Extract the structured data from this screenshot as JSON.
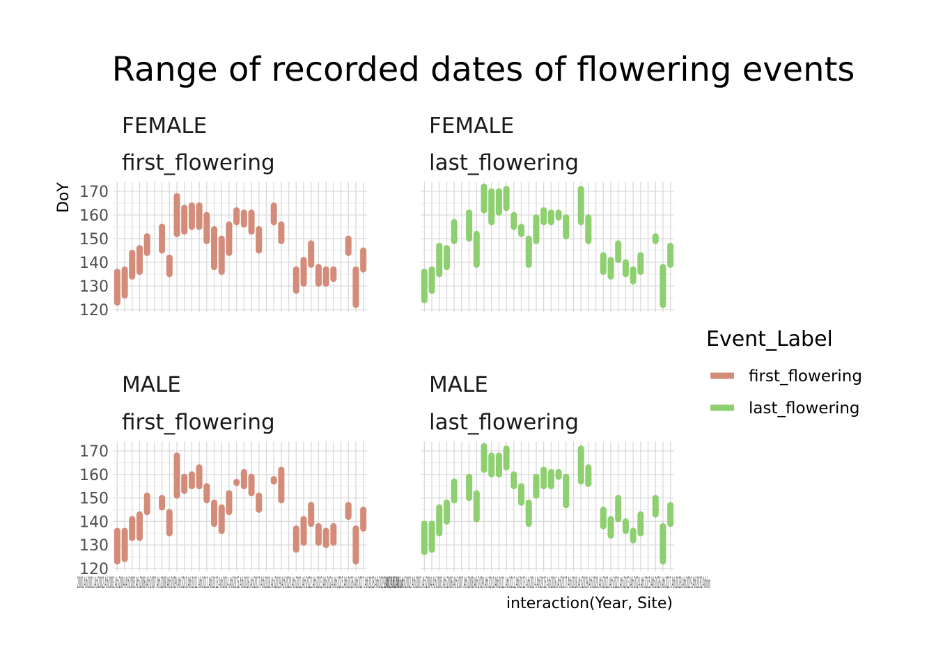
{
  "chart_data": {
    "type": "range",
    "title": "Range of recorded dates of flowering events",
    "xlabel": "interaction(Year, Site)",
    "ylabel": "DoY",
    "ylim": [
      120,
      174
    ],
    "y_ticks": [
      120,
      130,
      140,
      150,
      160,
      170
    ],
    "x_tick_label_text": "2000.Ath2001.Ath2002.Ath2003.Ath2004.Ath2005.Ath2006.Ath2007.Ath2008.Ath2009.Ath2010.Ath2011.Ath2012.Ath2013.Ath2014.Ath2015.Ath2016.Ath2017.Ath2018.Ath2019.Ath2020.Ath2021.Ath2022.Ath2023.Ath2024.Ath2025.Ath2026.Ath2027.Ath2028.Ath2029.Ath2030.Athlon",
    "grid": true,
    "legend": {
      "title": "Event_Label",
      "position": "right",
      "items": [
        {
          "label": "first_flowering",
          "color": "#d48c7a"
        },
        {
          "label": "last_flowering",
          "color": "#8ed070"
        }
      ]
    },
    "panels": [
      {
        "sex": "FEMALE",
        "event": "first_flowering",
        "color": "#d48c7a",
        "ranges": [
          [
            123,
            136
          ],
          [
            126,
            137
          ],
          [
            134,
            144
          ],
          [
            136,
            146
          ],
          [
            144,
            151
          ],
          null,
          [
            145,
            155
          ],
          [
            135,
            142
          ],
          [
            152,
            168
          ],
          [
            153,
            163
          ],
          [
            155,
            164
          ],
          [
            155,
            164
          ],
          [
            149,
            160
          ],
          [
            138,
            154
          ],
          [
            136,
            150
          ],
          [
            144,
            156
          ],
          [
            157,
            162
          ],
          [
            156,
            161
          ],
          [
            153,
            161
          ],
          [
            145,
            154
          ],
          null,
          [
            157,
            164
          ],
          [
            149,
            156
          ],
          null,
          [
            128,
            137
          ],
          [
            131,
            141
          ],
          [
            139,
            148
          ],
          [
            131,
            138
          ],
          [
            131,
            137
          ],
          [
            133,
            137
          ],
          null,
          [
            144,
            150
          ],
          [
            122,
            137
          ],
          [
            137,
            145
          ]
        ]
      },
      {
        "sex": "FEMALE",
        "event": "last_flowering",
        "color": "#8ed070",
        "ranges": [
          [
            124,
            136
          ],
          [
            128,
            137
          ],
          [
            135,
            147
          ],
          [
            138,
            146
          ],
          [
            149,
            157
          ],
          null,
          [
            150,
            161
          ],
          [
            139,
            152
          ],
          [
            162,
            172
          ],
          [
            157,
            170
          ],
          [
            161,
            170
          ],
          [
            163,
            171
          ],
          [
            155,
            160
          ],
          [
            152,
            155
          ],
          [
            139,
            150
          ],
          [
            149,
            159
          ],
          [
            157,
            162
          ],
          [
            157,
            161
          ],
          [
            159,
            161
          ],
          [
            151,
            159
          ],
          null,
          [
            157,
            171
          ],
          [
            149,
            159
          ],
          null,
          [
            136,
            143
          ],
          [
            134,
            141
          ],
          [
            141,
            148
          ],
          [
            135,
            140
          ],
          [
            132,
            137
          ],
          [
            136,
            143
          ],
          null,
          [
            149,
            151
          ],
          [
            122,
            138
          ],
          [
            139,
            147
          ]
        ]
      },
      {
        "sex": "MALE",
        "event": "first_flowering",
        "color": "#d48c7a",
        "ranges": [
          [
            123,
            136
          ],
          [
            124,
            136
          ],
          [
            133,
            141
          ],
          [
            133,
            143
          ],
          [
            144,
            151
          ],
          null,
          [
            146,
            150
          ],
          [
            135,
            144
          ],
          [
            151,
            168
          ],
          [
            153,
            159
          ],
          [
            155,
            160
          ],
          [
            155,
            163
          ],
          [
            149,
            155
          ],
          [
            139,
            148
          ],
          [
            136,
            146
          ],
          [
            144,
            152
          ],
          [
            156.4,
            156.8
          ],
          [
            155,
            161
          ],
          [
            152,
            159
          ],
          [
            145,
            151
          ],
          null,
          [
            157,
            158
          ],
          [
            149,
            162
          ],
          null,
          [
            128,
            137
          ],
          [
            131,
            141
          ],
          [
            139,
            147
          ],
          [
            131,
            138
          ],
          [
            130,
            136
          ],
          [
            131,
            138
          ],
          null,
          [
            142,
            147
          ],
          [
            123,
            137
          ],
          [
            137,
            145
          ]
        ]
      },
      {
        "sex": "MALE",
        "event": "last_flowering",
        "color": "#8ed070",
        "ranges": [
          [
            127,
            139
          ],
          [
            128,
            139
          ],
          [
            135,
            146
          ],
          [
            140,
            148
          ],
          [
            149,
            157
          ],
          null,
          [
            150,
            159
          ],
          [
            141,
            152
          ],
          [
            162,
            172
          ],
          [
            160,
            168
          ],
          [
            160,
            168
          ],
          [
            163,
            171
          ],
          [
            155,
            160
          ],
          [
            148,
            155
          ],
          [
            139,
            148
          ],
          [
            151,
            159
          ],
          [
            155,
            162
          ],
          [
            155,
            161
          ],
          [
            159,
            161
          ],
          [
            147,
            159
          ],
          null,
          [
            157,
            171
          ],
          [
            156,
            163
          ],
          null,
          [
            138,
            145
          ],
          [
            134,
            141
          ],
          [
            141,
            150
          ],
          [
            136,
            140
          ],
          [
            132,
            136
          ],
          [
            135,
            143
          ],
          null,
          [
            143,
            150
          ],
          [
            123,
            138
          ],
          [
            139,
            147
          ]
        ]
      }
    ]
  }
}
